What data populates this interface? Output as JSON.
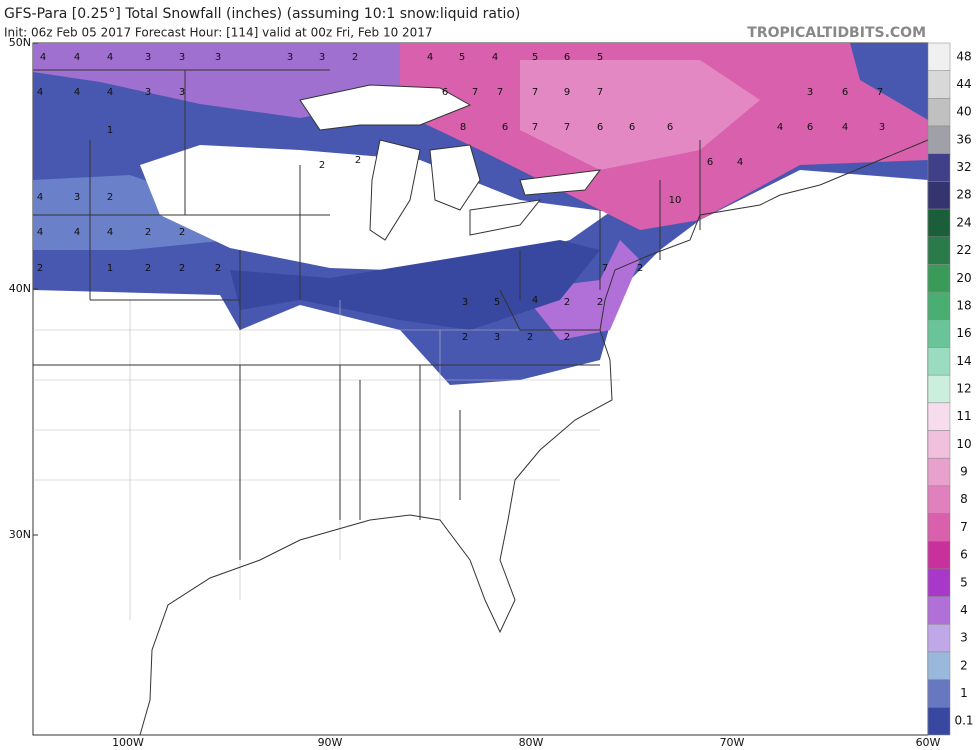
{
  "header": {
    "title": "GFS-Para [0.25°] Total Snowfall (inches) (assuming 10:1 snow:liquid ratio)",
    "subtitle": "Init: 06z Feb 05 2017   Forecast Hour: [114]   valid at 00z Fri, Feb 10 2017",
    "source": "TROPICALTIDBITS.COM"
  },
  "map": {
    "lat_labels": [
      "50N",
      "40N",
      "30N"
    ],
    "lon_labels": [
      "100W",
      "90W",
      "80W",
      "70W",
      "60W"
    ],
    "annotations": [
      4,
      4,
      4,
      3,
      3,
      3,
      3,
      3,
      2,
      4,
      5,
      4,
      5,
      6,
      5,
      4,
      4,
      4,
      3,
      3,
      6,
      7,
      7,
      7,
      9,
      7,
      1,
      2,
      2,
      8,
      6,
      7,
      7,
      6,
      6,
      6,
      4,
      3,
      2,
      4,
      4,
      4,
      2,
      2,
      2,
      1,
      2,
      2,
      2,
      3,
      5,
      4,
      2,
      2,
      2,
      3,
      2,
      2,
      7,
      2,
      10,
      6,
      4,
      4,
      6,
      4,
      3,
      7,
      6,
      3
    ]
  },
  "legend": {
    "levels": [
      48,
      44,
      40,
      36,
      32,
      28,
      24,
      22,
      20,
      18,
      16,
      14,
      12,
      11,
      10,
      9,
      8,
      7,
      6,
      5,
      4,
      3,
      2,
      1,
      0.1
    ],
    "colors": [
      "#f0f0f0",
      "#d8d8d8",
      "#c0c0c0",
      "#a0a0a8",
      "#404088",
      "#34346e",
      "#1a5e3a",
      "#2a7a4a",
      "#3a9a5a",
      "#4aae72",
      "#6ac49a",
      "#9adcc0",
      "#cceedd",
      "#f6dcec",
      "#f0c0dc",
      "#e8a0cc",
      "#e080bc",
      "#d860ac",
      "#c8309c",
      "#a838c8",
      "#b070d8",
      "#c0a8e8",
      "#9ab8dc",
      "#6878c0",
      "#3848a0"
    ]
  }
}
